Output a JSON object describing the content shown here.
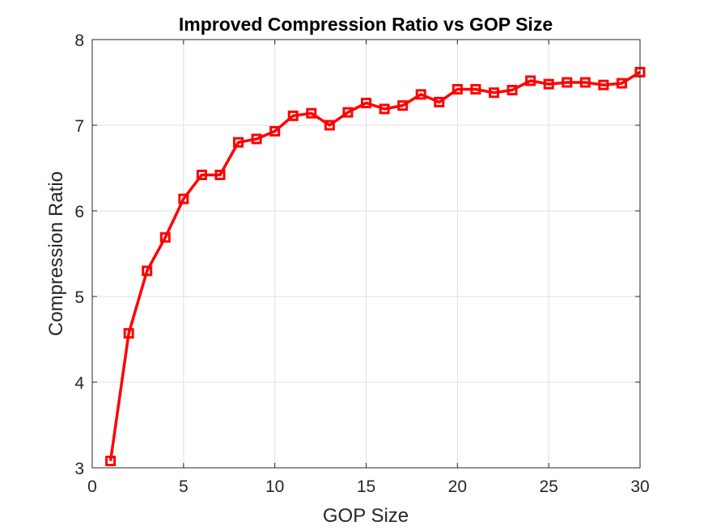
{
  "chart_data": {
    "type": "line",
    "title": "Improved Compression Ratio vs GOP Size",
    "xlabel": "GOP Size",
    "ylabel": "Compression Ratio",
    "xlim": [
      0,
      30
    ],
    "ylim": [
      3,
      8
    ],
    "xticks": [
      0,
      5,
      10,
      15,
      20,
      25,
      30
    ],
    "yticks": [
      3,
      4,
      5,
      6,
      7,
      8
    ],
    "grid": true,
    "marker": "square",
    "line_color": "#ff0000",
    "series": [
      {
        "x": [
          1,
          2,
          3,
          4,
          5,
          6,
          7,
          8,
          9,
          10,
          11,
          12,
          13,
          14,
          15,
          16,
          17,
          18,
          19,
          20,
          21,
          22,
          23,
          24,
          25,
          26,
          27,
          28,
          29,
          30
        ],
        "values": [
          3.08,
          4.57,
          5.3,
          5.69,
          6.14,
          6.42,
          6.42,
          6.8,
          6.84,
          6.93,
          7.11,
          7.14,
          7.0,
          7.15,
          7.26,
          7.19,
          7.23,
          7.36,
          7.27,
          7.42,
          7.42,
          7.38,
          7.41,
          7.52,
          7.48,
          7.5,
          7.5,
          7.47,
          7.49,
          7.62
        ]
      }
    ]
  }
}
